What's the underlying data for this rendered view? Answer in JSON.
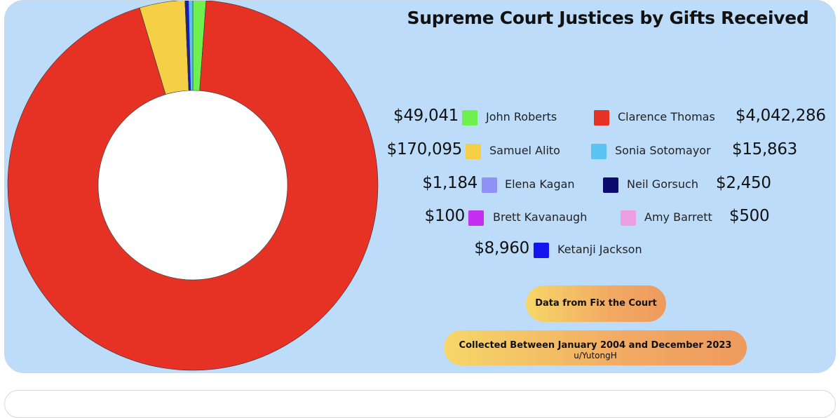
{
  "chart_data": {
    "type": "pie",
    "title": "Supreme Court Justices by Gifts Received",
    "slices": [
      {
        "name": "John Roberts",
        "value": 49041,
        "label": "$49,041",
        "color": "#6ef04e"
      },
      {
        "name": "Clarence Thomas",
        "value": 4042286,
        "label": "$4,042,286",
        "color": "#e53224"
      },
      {
        "name": "Samuel Alito",
        "value": 170095,
        "label": "$170,095",
        "color": "#f5cf46"
      },
      {
        "name": "Sonia Sotomayor",
        "value": 15863,
        "label": "$15,863",
        "color": "#5bc3f1"
      },
      {
        "name": "Elena Kagan",
        "value": 1184,
        "label": "$1,184",
        "color": "#8f92f4"
      },
      {
        "name": "Neil Gorsuch",
        "value": 2450,
        "label": "$2,450",
        "color": "#0d0c6e"
      },
      {
        "name": "Brett Kavanaugh",
        "value": 100,
        "label": "$100",
        "color": "#c42ff0"
      },
      {
        "name": "Amy Barrett",
        "value": 500,
        "label": "$500",
        "color": "#ee9ee2"
      },
      {
        "name": "Ketanji Jackson",
        "value": 8960,
        "label": "$8,960",
        "color": "#1414ee"
      }
    ],
    "draw_order": [
      "John Roberts",
      "Clarence Thomas",
      "Samuel Alito",
      "Brett Kavanaugh",
      "Elena Kagan",
      "Amy Barrett",
      "Neil Gorsuch",
      "Ketanji Jackson",
      "Sonia Sotomayor"
    ],
    "legend_placement": "right"
  },
  "legend_rows": [
    [
      {
        "amount": "$49,041",
        "name": "John Roberts",
        "color": "#6ef04e"
      },
      {
        "amount": "$4,042,286",
        "name": "Clarence Thomas",
        "color": "#e53224"
      }
    ],
    [
      {
        "amount": "$170,095",
        "name": "Samuel Alito",
        "color": "#f5cf46"
      },
      {
        "amount": "$15,863",
        "name": "Sonia Sotomayor",
        "color": "#5bc3f1"
      }
    ],
    [
      {
        "amount": "$1,184",
        "name": "Elena Kagan",
        "color": "#8f92f4"
      },
      {
        "amount": "$2,450",
        "name": "Neil Gorsuch",
        "color": "#0d0c6e"
      }
    ],
    [
      {
        "amount": "$100",
        "name": "Brett Kavanaugh",
        "color": "#c42ff0"
      },
      {
        "amount": "$500",
        "name": "Amy Barrett",
        "color": "#ee9ee2"
      }
    ],
    [
      {
        "amount": "$8,960",
        "name": "Ketanji Jackson",
        "color": "#1414ee"
      }
    ]
  ],
  "source": {
    "line1": "Data from Fix the Court",
    "line2": "Collected Between January 2004 and December 2023",
    "credit": "u/YutongH"
  }
}
